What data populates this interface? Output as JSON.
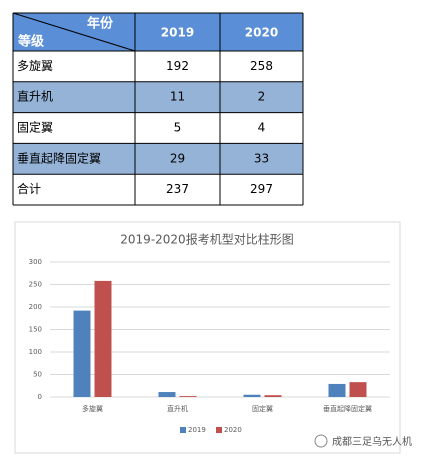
{
  "table": {
    "corner_top": "年份",
    "corner_bottom": "等级",
    "columns": [
      "2019",
      "2020"
    ],
    "rows": [
      [
        "多旋翼",
        192,
        258
      ],
      [
        "直升机",
        11,
        2
      ],
      [
        "固定翼",
        5,
        4
      ],
      [
        "垂直起降固定翼",
        29,
        33
      ],
      [
        "合计",
        237,
        297
      ]
    ]
  },
  "chart_data": {
    "type": "bar",
    "title": "2019-2020报考机型对比柱形图",
    "categories": [
      "多旋翼",
      "直升机",
      "固定翼",
      "垂直起降固定翼"
    ],
    "series": [
      {
        "name": "2019",
        "color": "#4f81bd",
        "values": [
          192,
          11,
          5,
          29
        ]
      },
      {
        "name": "2020",
        "color": "#c0504d",
        "values": [
          258,
          2,
          4,
          33
        ]
      }
    ],
    "ylim": [
      0,
      300
    ],
    "yticks": [
      0,
      50,
      100,
      150,
      200,
      250,
      300
    ],
    "grid": true,
    "legend": "bottom"
  },
  "watermark": "成都三足乌无人机"
}
